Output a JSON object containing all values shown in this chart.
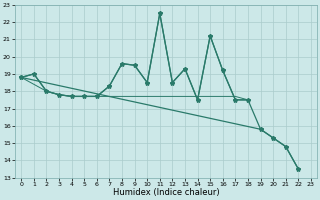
{
  "xlabel": "Humidex (Indice chaleur)",
  "bg_color": "#cce8e8",
  "grid_color": "#aacccc",
  "line_color": "#2a7a6a",
  "xlim": [
    -0.5,
    23.5
  ],
  "ylim": [
    13,
    23
  ],
  "xticks": [
    0,
    1,
    2,
    3,
    4,
    5,
    6,
    7,
    8,
    9,
    10,
    11,
    12,
    13,
    14,
    15,
    16,
    17,
    18,
    19,
    20,
    21,
    22,
    23
  ],
  "yticks": [
    13,
    14,
    15,
    16,
    17,
    18,
    19,
    20,
    21,
    22,
    23
  ],
  "series_jagged_x": [
    0,
    1,
    2,
    3,
    4,
    5,
    6,
    7,
    8,
    9,
    10,
    11,
    12,
    13,
    14,
    15,
    16,
    17,
    18
  ],
  "series_jagged_y": [
    18.8,
    19.0,
    18.0,
    17.8,
    17.7,
    17.7,
    17.7,
    18.3,
    19.6,
    19.5,
    18.5,
    22.5,
    18.5,
    19.3,
    17.5,
    21.2,
    19.2,
    17.5,
    17.5
  ],
  "series_descend_x": [
    0,
    19,
    20,
    21,
    22
  ],
  "series_descend_y": [
    18.8,
    15.8,
    15.3,
    14.8,
    13.5
  ],
  "series_flat_x": [
    0,
    2,
    3,
    4,
    5,
    6,
    7,
    8,
    9,
    10,
    11,
    12,
    13,
    14,
    15,
    16,
    17,
    18
  ],
  "series_flat_y": [
    18.8,
    18.0,
    17.8,
    17.7,
    17.7,
    17.7,
    17.7,
    17.7,
    17.7,
    17.7,
    17.7,
    17.7,
    17.7,
    17.7,
    17.7,
    17.7,
    17.7,
    17.5
  ],
  "series_combo_x": [
    0,
    1,
    2,
    3,
    4,
    5,
    6,
    7,
    8,
    9,
    10,
    11,
    12,
    13,
    14,
    15,
    16,
    17,
    18,
    19,
    20,
    21,
    22
  ],
  "series_combo_y": [
    18.8,
    19.0,
    18.0,
    17.8,
    17.7,
    17.7,
    17.7,
    18.3,
    19.6,
    19.5,
    18.5,
    22.5,
    18.5,
    19.3,
    17.5,
    21.2,
    19.2,
    17.5,
    17.5,
    15.8,
    15.3,
    14.8,
    13.5
  ]
}
